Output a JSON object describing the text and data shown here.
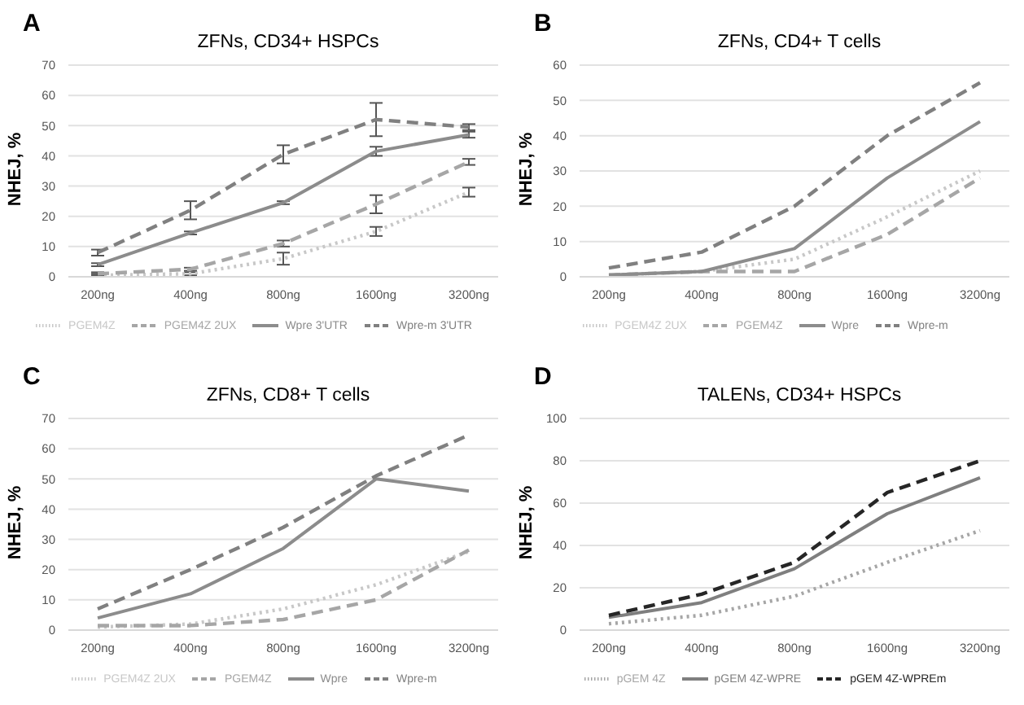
{
  "chart_data": [
    {
      "type": "line",
      "title": "ZFNs, CD34+ HSPCs",
      "ylabel": "NHEJ, %",
      "annotations": [
        "A"
      ],
      "categories": [
        "200ng",
        "400ng",
        "800ng",
        "1600ng",
        "3200ng"
      ],
      "ylim": [
        0,
        70
      ],
      "yticks": [
        0,
        10,
        20,
        30,
        40,
        50,
        60,
        70
      ],
      "grid": "y",
      "legend": "bottom",
      "series": [
        {
          "name": "PGEM4Z",
          "color": "#c8c8c8",
          "line_style": "dotted",
          "values": [
            0.5,
            1,
            6,
            15,
            28
          ],
          "errors": [
            0.5,
            0.5,
            2,
            1.5,
            1.5
          ]
        },
        {
          "name": "PGEM4Z 2UX",
          "color": "#a6a6a6",
          "line_style": "dashed",
          "values": [
            1,
            2.5,
            11,
            24,
            38
          ],
          "errors": [
            0.5,
            0.5,
            1,
            3,
            1
          ]
        },
        {
          "name": "Wpre 3'UTR",
          "color": "#8c8c8c",
          "line_style": "solid",
          "values": [
            4,
            14.5,
            24.5,
            41.5,
            47
          ],
          "errors": [
            0.5,
            0.5,
            0.5,
            1.5,
            1
          ]
        },
        {
          "name": "Wpre-m 3'UTR",
          "color": "#808080",
          "line_style": "dashed",
          "values": [
            8,
            22,
            40.5,
            52,
            49.5
          ],
          "errors": [
            1,
            3,
            3,
            5.5,
            1
          ]
        }
      ]
    },
    {
      "type": "line",
      "title": "ZFNs, CD4+ T cells",
      "ylabel": "NHEJ, %",
      "annotations": [
        "B"
      ],
      "categories": [
        "200ng",
        "400ng",
        "800ng",
        "1600ng",
        "3200ng"
      ],
      "ylim": [
        0,
        60
      ],
      "yticks": [
        0,
        10,
        20,
        30,
        40,
        50,
        60
      ],
      "grid": "y",
      "legend": "bottom",
      "series": [
        {
          "name": "PGEM4Z 2UX",
          "color": "#c8c8c8",
          "line_style": "dotted",
          "values": [
            0.5,
            1.5,
            5,
            17,
            30
          ]
        },
        {
          "name": "PGEM4Z",
          "color": "#a6a6a6",
          "line_style": "dashed",
          "values": [
            0.5,
            1.5,
            1.5,
            12,
            28
          ]
        },
        {
          "name": "Wpre",
          "color": "#8c8c8c",
          "line_style": "solid",
          "values": [
            0.5,
            1.5,
            8,
            28,
            44
          ]
        },
        {
          "name": "Wpre-m",
          "color": "#808080",
          "line_style": "dashed",
          "values": [
            2.5,
            7,
            20,
            40,
            55
          ]
        }
      ]
    },
    {
      "type": "line",
      "title": "ZFNs, CD8+ T cells",
      "ylabel": "NHEJ, %",
      "annotations": [
        "C"
      ],
      "categories": [
        "200ng",
        "400ng",
        "800ng",
        "1600ng",
        "3200ng"
      ],
      "ylim": [
        0,
        70
      ],
      "yticks": [
        0,
        10,
        20,
        30,
        40,
        50,
        60,
        70
      ],
      "grid": "y",
      "legend": "bottom",
      "series": [
        {
          "name": "PGEM4Z 2UX",
          "color": "#c8c8c8",
          "line_style": "dotted",
          "values": [
            1,
            2,
            7,
            15,
            26
          ]
        },
        {
          "name": "PGEM4Z",
          "color": "#a6a6a6",
          "line_style": "dashed",
          "values": [
            1.5,
            1.5,
            3.5,
            10,
            26.5
          ]
        },
        {
          "name": "Wpre",
          "color": "#8c8c8c",
          "line_style": "solid",
          "values": [
            4,
            12,
            27,
            50,
            46
          ]
        },
        {
          "name": "Wpre-m",
          "color": "#808080",
          "line_style": "dashed",
          "values": [
            7,
            20,
            34,
            51,
            64.5
          ]
        }
      ]
    },
    {
      "type": "line",
      "title": "TALENs, CD34+ HSPCs",
      "ylabel": "NHEJ, %",
      "annotations": [
        "D"
      ],
      "categories": [
        "200ng",
        "400ng",
        "800ng",
        "1600ng",
        "3200ng"
      ],
      "ylim": [
        0,
        100
      ],
      "yticks": [
        0,
        20,
        40,
        60,
        80,
        100
      ],
      "grid": "y",
      "legend": "bottom",
      "series": [
        {
          "name": "pGEM 4Z",
          "color": "#a6a6a6",
          "line_style": "dotted",
          "values": [
            3,
            7,
            16,
            32,
            47
          ]
        },
        {
          "name": "pGEM 4Z-WPRE",
          "color": "#7f7f7f",
          "line_style": "solid",
          "values": [
            6,
            13,
            29,
            55,
            72
          ]
        },
        {
          "name": "pGEM 4Z-WPREm",
          "color": "#262626",
          "line_style": "dashed",
          "values": [
            7,
            17,
            32,
            65,
            80
          ]
        }
      ]
    }
  ]
}
